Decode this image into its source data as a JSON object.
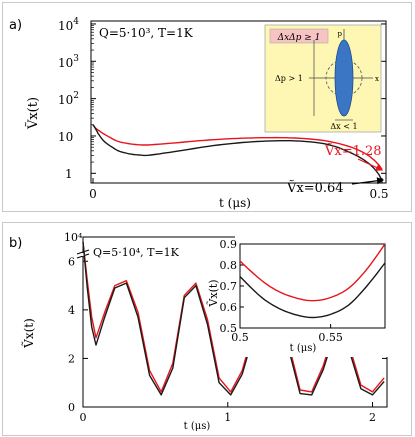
{
  "chart_data": [
    {
      "panel_label": "a)",
      "type": "line",
      "yscale": "log",
      "xlim": [
        0,
        0.5
      ],
      "ylim": [
        0.55,
        12000
      ],
      "xlabel": "t (μs)",
      "ylabel": "Ṽx(t)",
      "xticks": [
        "0",
        "0.5"
      ],
      "yticks": [
        "1",
        "10",
        "10",
        "10",
        "10"
      ],
      "ytick_exp": [
        "",
        "",
        "2",
        "3",
        "4"
      ],
      "params": "Q=5·10³, T=1K",
      "annotations": [
        "Ṽx=1.28",
        "Ṽx=0.64"
      ],
      "colors": {
        "red": "#e8141b",
        "black": "#1a1a1a",
        "inset_bg": "#fdf7b3",
        "ellipse": "#3b76c4"
      },
      "inset": {
        "condition": "ΔxΔp ≥ 1",
        "left_label": "Δp > 1",
        "bottom_label": "Δx < 1",
        "p_axis": "p",
        "x_axis": "x"
      },
      "series": [
        {
          "color": "red",
          "x": [
            0,
            0.002,
            0.005,
            0.01,
            0.02,
            0.04,
            0.06,
            0.08,
            0.1,
            0.15,
            0.2,
            0.25,
            0.3,
            0.35,
            0.4,
            0.45,
            0.5
          ],
          "y": [
            20,
            18,
            16,
            14,
            11,
            7.5,
            6.3,
            5.8,
            5.8,
            6.7,
            7.8,
            8.6,
            9,
            8.8,
            7.5,
            4.8,
            1.28
          ]
        },
        {
          "color": "black",
          "x": [
            0,
            0.002,
            0.005,
            0.01,
            0.02,
            0.04,
            0.06,
            0.08,
            0.1,
            0.15,
            0.2,
            0.25,
            0.3,
            0.35,
            0.4,
            0.45,
            0.5
          ],
          "y": [
            20,
            18,
            15,
            11,
            7,
            4.3,
            3.4,
            3.1,
            3.1,
            4,
            5.3,
            6.5,
            7.3,
            7.4,
            6.2,
            3.3,
            0.64
          ]
        }
      ]
    },
    {
      "panel_label": "b)",
      "type": "line",
      "xlim": [
        0,
        2.1
      ],
      "ylim": [
        0,
        7
      ],
      "xlabel": "t (μs)",
      "ylabel": "Ṽx(t)",
      "xticks": [
        "0",
        "1",
        "2"
      ],
      "yticks": [
        "0",
        "2",
        "4",
        "6"
      ],
      "broken_axis_label": "10⁴",
      "params": "Q=5·10⁴, T=1K",
      "gaps": [
        [
          1.25,
          1.42
        ],
        [
          1.7,
          1.84
        ]
      ],
      "series": [
        {
          "color": "red",
          "x": [
            0,
            0.03,
            0.06,
            0.09,
            0.15,
            0.22,
            0.3,
            0.38,
            0.46,
            0.54,
            0.62,
            0.7,
            0.78,
            0.86,
            0.94,
            1.02,
            1.1,
            1.18,
            1.25,
            1.42,
            1.5,
            1.58,
            1.66,
            1.7,
            1.84,
            1.92,
            2.0,
            2.08
          ],
          "y": [
            6.8,
            5.2,
            3.7,
            2.85,
            3.9,
            5.0,
            5.2,
            3.9,
            1.5,
            0.62,
            1.8,
            4.6,
            5.1,
            3.6,
            1.2,
            0.62,
            1.5,
            3.2,
            2.4,
            2.6,
            0.7,
            0.62,
            1.7,
            2.5,
            2.5,
            0.9,
            0.62,
            1.2
          ]
        },
        {
          "color": "black",
          "x": [
            0,
            0.03,
            0.06,
            0.09,
            0.15,
            0.22,
            0.3,
            0.38,
            0.46,
            0.54,
            0.62,
            0.7,
            0.78,
            0.86,
            0.94,
            1.02,
            1.1,
            1.18,
            1.25,
            1.42,
            1.5,
            1.58,
            1.66,
            1.7,
            1.84,
            1.92,
            2.0,
            2.08
          ],
          "y": [
            6.8,
            4.9,
            3.3,
            2.55,
            3.7,
            4.9,
            5.1,
            3.7,
            1.3,
            0.5,
            1.6,
            4.5,
            5.0,
            3.4,
            1.0,
            0.5,
            1.35,
            3.0,
            2.2,
            2.4,
            0.55,
            0.5,
            1.55,
            2.3,
            2.3,
            0.75,
            0.5,
            1.05
          ]
        }
      ],
      "inset": {
        "xlim": [
          0.5,
          0.58
        ],
        "ylim": [
          0.5,
          0.9
        ],
        "xticks": [
          "0.5",
          "0.55"
        ],
        "yticks": [
          "0.5",
          "0.6",
          "0.7",
          "0.8",
          "0.9"
        ],
        "xlabel": "t (μs)",
        "ylabel": "Ṽx(t)",
        "series": [
          {
            "color": "red",
            "x": [
              0.495,
              0.51,
              0.52,
              0.53,
              0.54,
              0.55,
              0.56,
              0.57,
              0.58
            ],
            "y": [
              0.86,
              0.74,
              0.68,
              0.645,
              0.63,
              0.645,
              0.69,
              0.78,
              0.9
            ]
          },
          {
            "color": "black",
            "x": [
              0.495,
              0.51,
              0.52,
              0.53,
              0.54,
              0.55,
              0.56,
              0.57,
              0.58
            ],
            "y": [
              0.79,
              0.66,
              0.6,
              0.565,
              0.55,
              0.565,
              0.61,
              0.7,
              0.81
            ]
          }
        ]
      }
    }
  ]
}
